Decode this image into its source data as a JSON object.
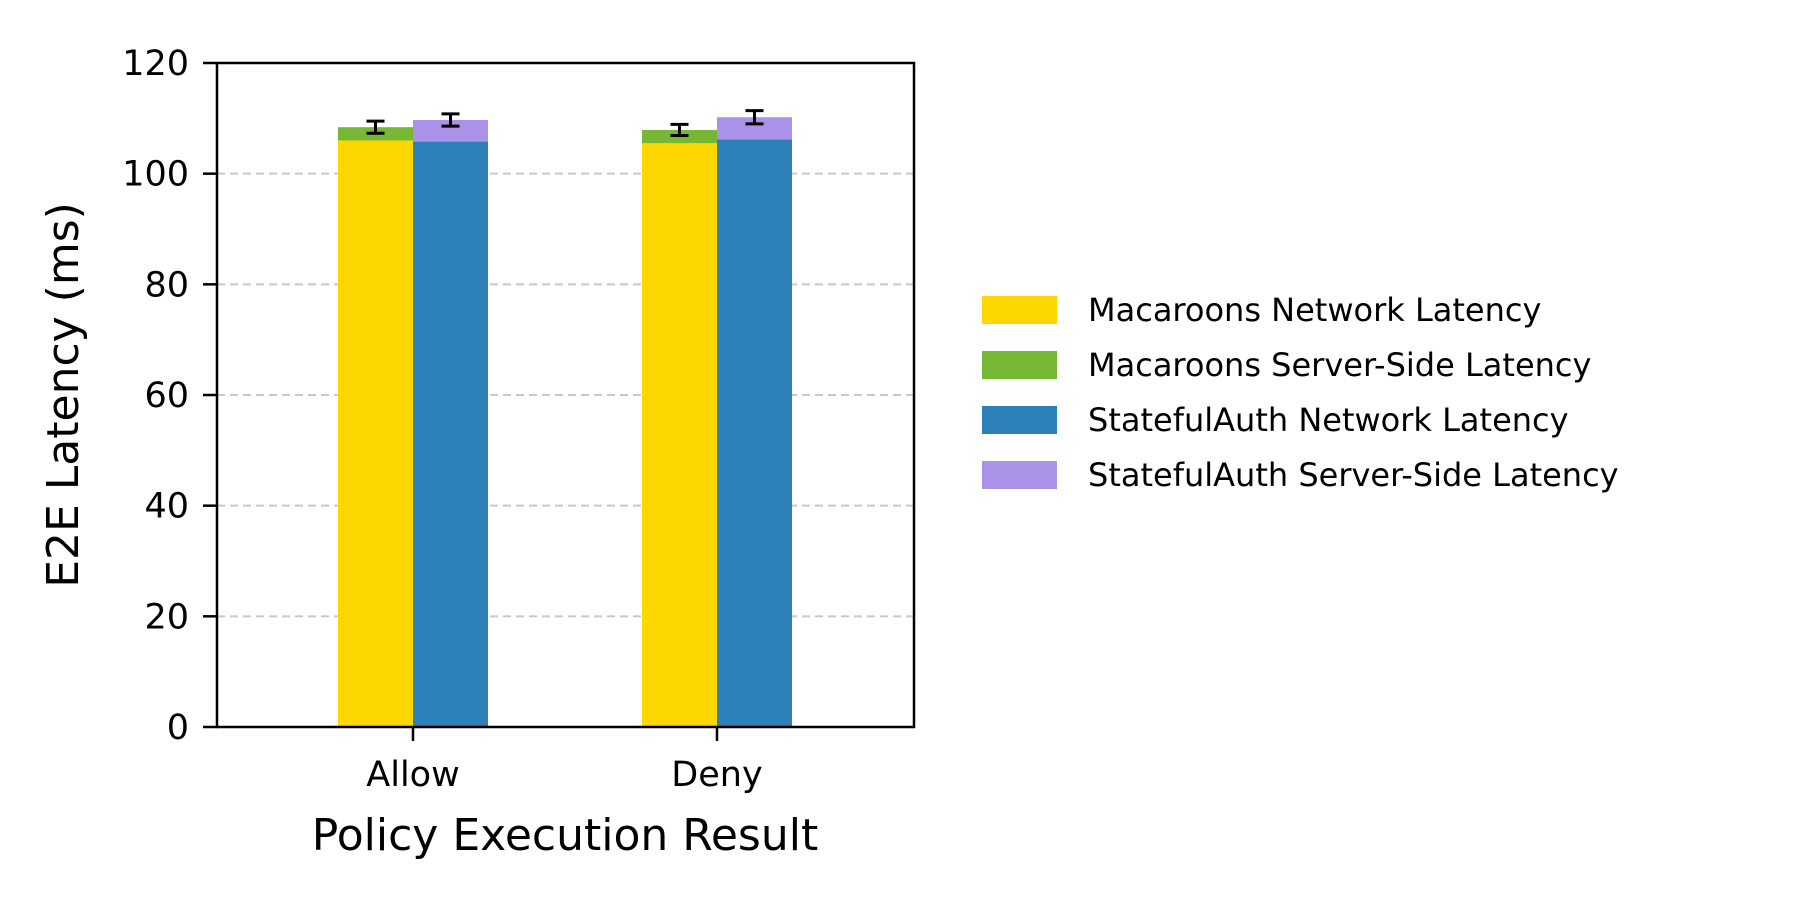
{
  "chart_data": {
    "type": "bar",
    "stacked_grouped": true,
    "categories": [
      "Allow",
      "Deny"
    ],
    "xlabel": "Policy Execution Result",
    "ylabel": "E2E Latency (ms)",
    "ylim": [
      0,
      120
    ],
    "yticks": [
      0,
      20,
      40,
      60,
      80,
      100,
      120
    ],
    "grid": "y-dashed",
    "legend_position": "right",
    "groups": [
      {
        "name": "Macaroons",
        "stack": [
          {
            "name": "Macaroons Network Latency",
            "color": "#FFD700",
            "values": [
              106.0,
              105.5
            ]
          },
          {
            "name": "Macaroons Server-Side Latency",
            "color": "#76B733",
            "values": [
              2.4,
              2.4
            ]
          }
        ],
        "error": [
          1.1,
          1.0
        ]
      },
      {
        "name": "StatefulAuth",
        "stack": [
          {
            "name": "StatefulAuth Network Latency",
            "color": "#2E80B8",
            "values": [
              105.8,
              106.2
            ]
          },
          {
            "name": "StatefulAuth Server-Side Latency",
            "color": "#A992E8",
            "values": [
              3.9,
              4.0
            ]
          }
        ],
        "error": [
          1.1,
          1.2
        ]
      }
    ]
  }
}
